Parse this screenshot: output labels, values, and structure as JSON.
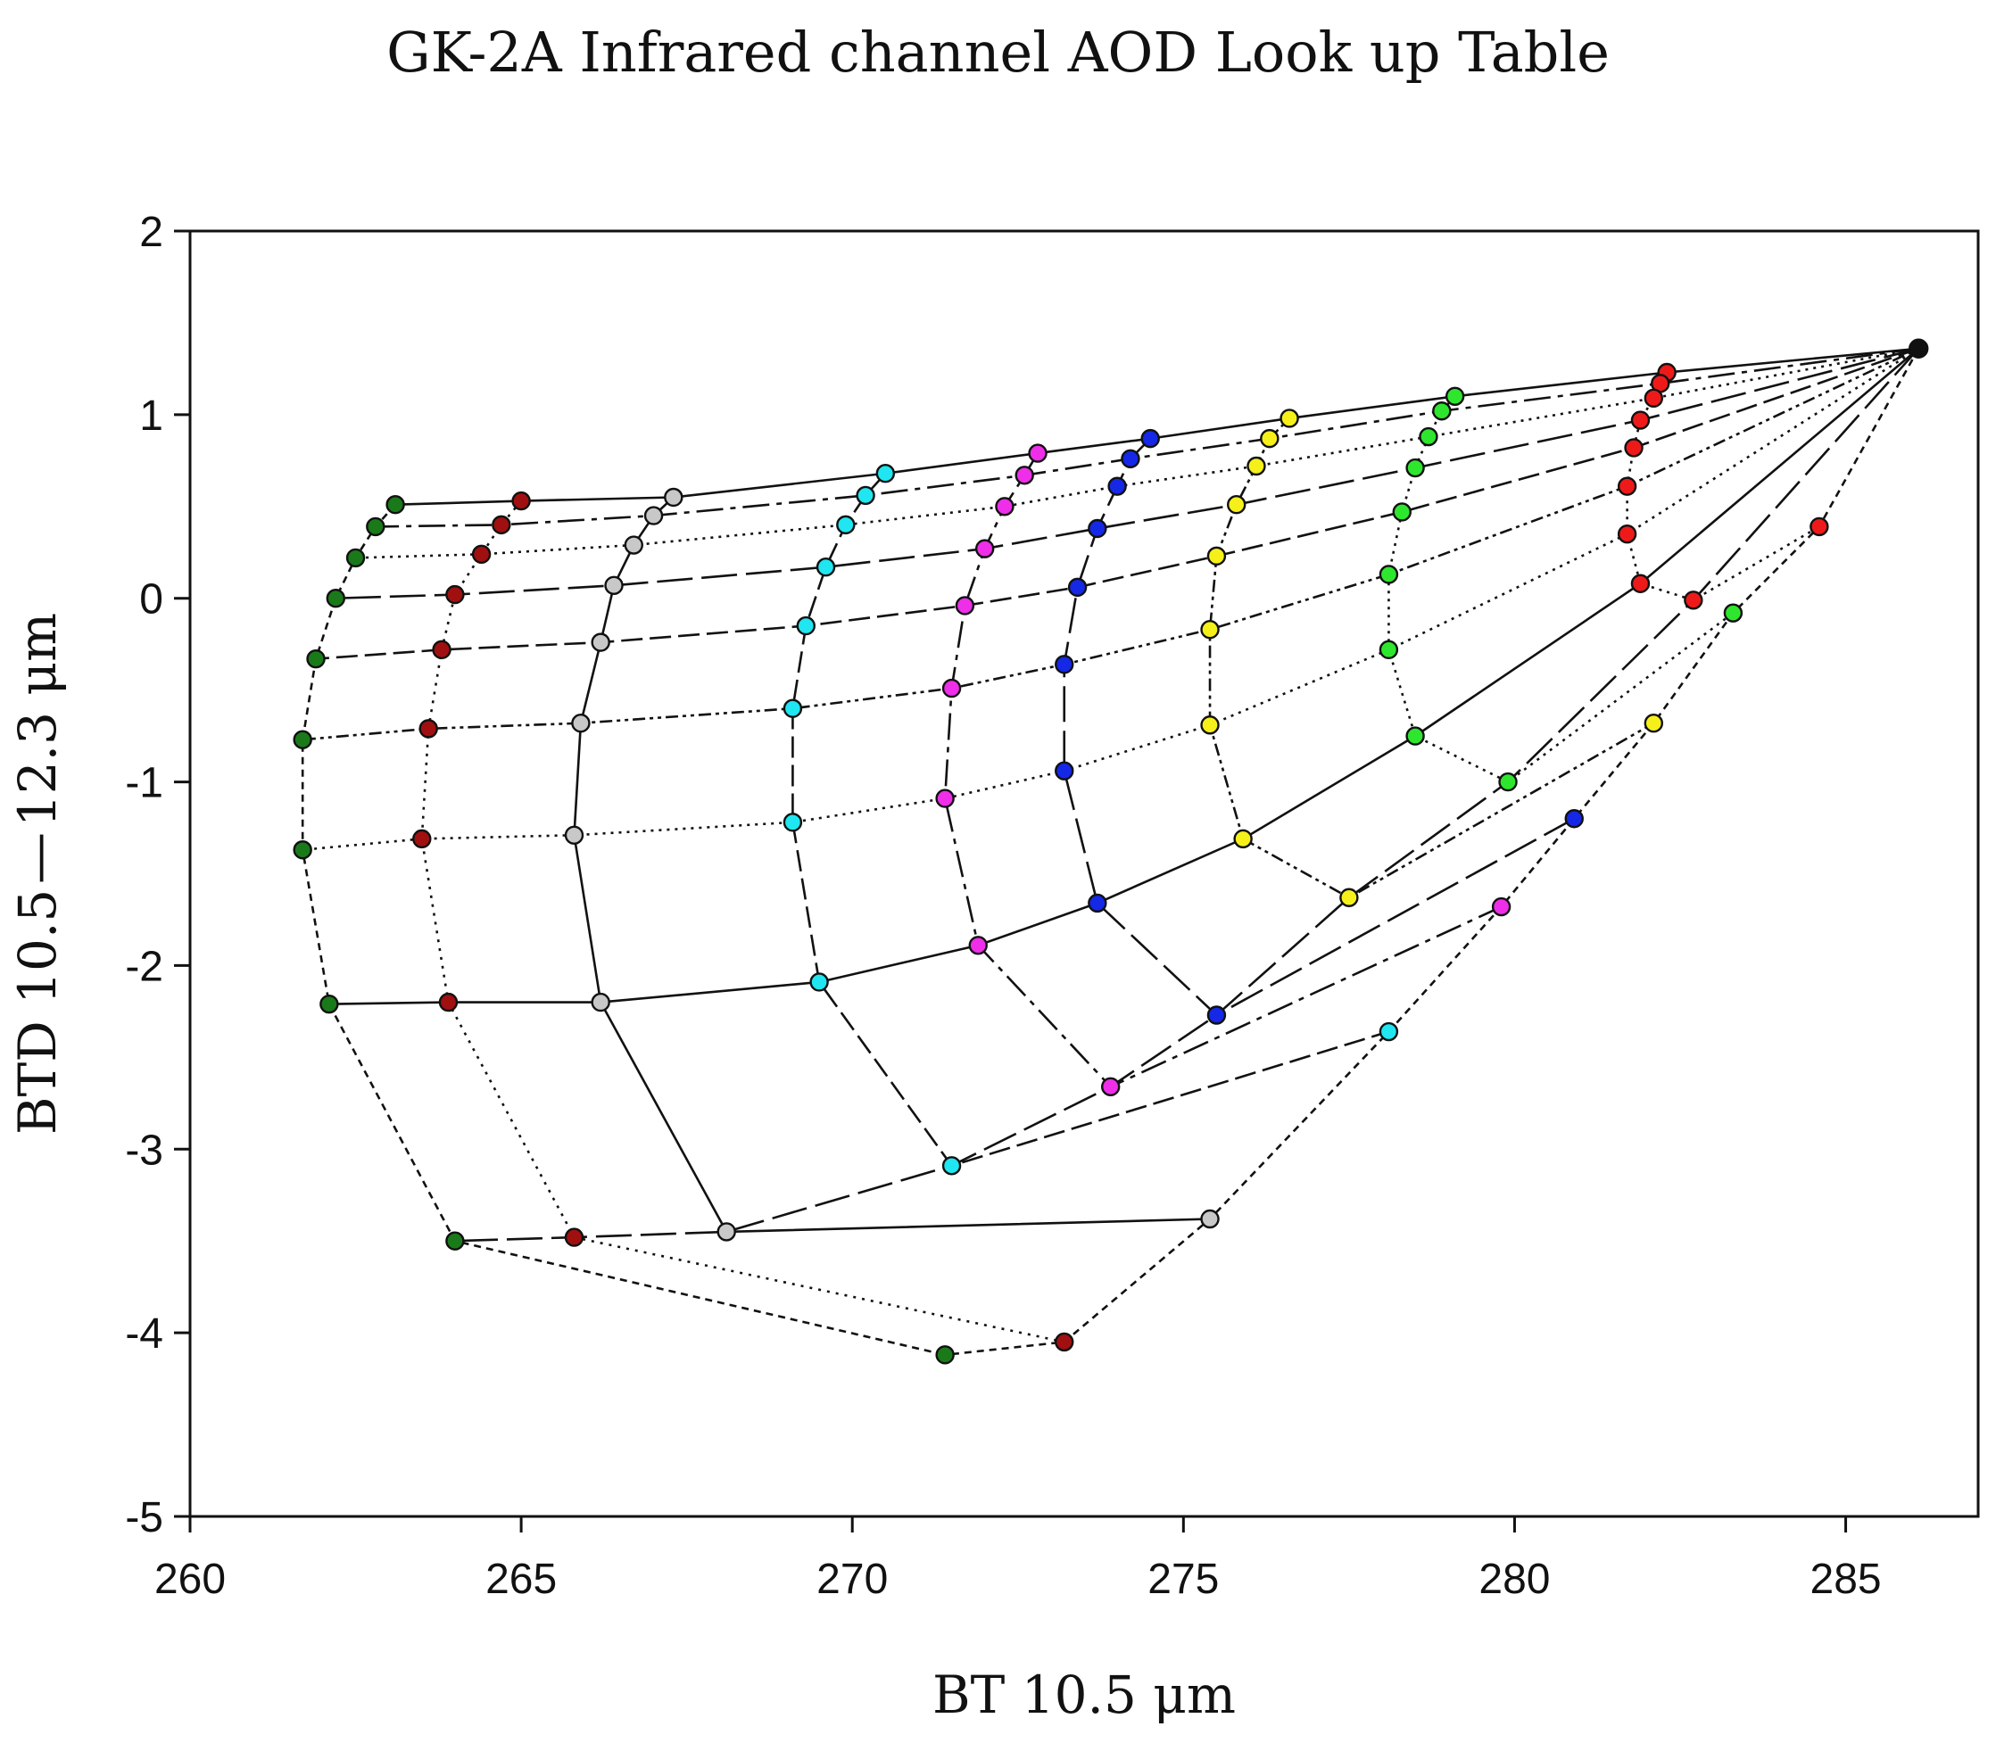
{
  "chart_data": {
    "type": "scatter",
    "title": "GK-2A Infrared channel AOD Look up Table",
    "xlabel": "BT 10.5 μm",
    "ylabel": "BTD 10.5 — 12.3 μm",
    "xlim": [
      260,
      287
    ],
    "ylim": [
      -5,
      2
    ],
    "xticks": [
      260,
      265,
      270,
      275,
      280,
      285
    ],
    "yticks": [
      2,
      1,
      0,
      -1,
      -2,
      -3,
      -4,
      -5
    ],
    "grid": false,
    "legend": "none",
    "colors": {
      "darkgreen": "#1a7a1a",
      "darkred": "#a01010",
      "gray": "#c8c8c8",
      "cyan": "#1fe6f0",
      "magenta": "#ee2ee8",
      "blue": "#1428e6",
      "yellow": "#f5f01a",
      "green": "#2ee62e",
      "red": "#ee1a1a",
      "black": "#111111"
    },
    "origin": {
      "x": 286.1,
      "y": 1.36
    },
    "series": [
      {
        "color": "darkgreen",
        "dash": "8,6",
        "points": [
          [
            263.1,
            0.51
          ],
          [
            262.8,
            0.39
          ],
          [
            262.5,
            0.22
          ],
          [
            262.2,
            0.0
          ],
          [
            261.9,
            -0.33
          ],
          [
            261.7,
            -0.77
          ],
          [
            261.7,
            -1.37
          ],
          [
            262.1,
            -2.21
          ],
          [
            264.0,
            -3.5
          ],
          [
            271.4,
            -4.12
          ]
        ]
      },
      {
        "color": "darkred",
        "dash": "3,7",
        "points": [
          [
            265.0,
            0.53
          ],
          [
            264.7,
            0.4
          ],
          [
            264.4,
            0.24
          ],
          [
            264.0,
            0.02
          ],
          [
            263.8,
            -0.28
          ],
          [
            263.6,
            -0.71
          ],
          [
            263.5,
            -1.31
          ],
          [
            263.9,
            -2.2
          ],
          [
            265.8,
            -3.48
          ],
          [
            273.2,
            -4.05
          ]
        ]
      },
      {
        "color": "gray",
        "dash": "",
        "points": [
          [
            267.3,
            0.55
          ],
          [
            267.0,
            0.45
          ],
          [
            266.7,
            0.29
          ],
          [
            266.4,
            0.07
          ],
          [
            266.2,
            -0.24
          ],
          [
            265.9,
            -0.68
          ],
          [
            265.8,
            -1.29
          ],
          [
            266.2,
            -2.2
          ],
          [
            268.1,
            -3.45
          ],
          [
            275.4,
            -3.38
          ]
        ]
      },
      {
        "color": "cyan",
        "dash": "24,8",
        "points": [
          [
            270.5,
            0.68
          ],
          [
            270.2,
            0.56
          ],
          [
            269.9,
            0.4
          ],
          [
            269.6,
            0.17
          ],
          [
            269.3,
            -0.15
          ],
          [
            269.1,
            -0.6
          ],
          [
            269.1,
            -1.22
          ],
          [
            269.5,
            -2.09
          ],
          [
            271.5,
            -3.09
          ],
          [
            278.1,
            -2.36
          ]
        ]
      },
      {
        "color": "magenta",
        "dash": "30,8,6,8",
        "points": [
          [
            272.8,
            0.79
          ],
          [
            272.6,
            0.67
          ],
          [
            272.3,
            0.5
          ],
          [
            272.0,
            0.27
          ],
          [
            271.7,
            -0.04
          ],
          [
            271.5,
            -0.49
          ],
          [
            271.4,
            -1.09
          ],
          [
            271.9,
            -1.89
          ],
          [
            273.9,
            -2.66
          ],
          [
            279.8,
            -1.68
          ]
        ]
      },
      {
        "color": "blue",
        "dash": "40,10",
        "points": [
          [
            274.5,
            0.87
          ],
          [
            274.2,
            0.76
          ],
          [
            274.0,
            0.61
          ],
          [
            273.7,
            0.38
          ],
          [
            273.4,
            0.06
          ],
          [
            273.2,
            -0.36
          ],
          [
            273.2,
            -0.94
          ],
          [
            273.7,
            -1.66
          ],
          [
            275.5,
            -2.27
          ],
          [
            280.9,
            -1.2
          ]
        ]
      },
      {
        "color": "yellow",
        "dash": "4,5,4,5,14,5",
        "points": [
          [
            276.6,
            0.98
          ],
          [
            276.3,
            0.87
          ],
          [
            276.1,
            0.72
          ],
          [
            275.8,
            0.51
          ],
          [
            275.5,
            0.23
          ],
          [
            275.4,
            -0.17
          ],
          [
            275.4,
            -0.69
          ],
          [
            275.9,
            -1.31
          ],
          [
            277.5,
            -1.63
          ],
          [
            282.1,
            -0.68
          ]
        ]
      },
      {
        "color": "green",
        "dash": "3,6",
        "points": [
          [
            279.1,
            1.1
          ],
          [
            278.9,
            1.02
          ],
          [
            278.7,
            0.88
          ],
          [
            278.5,
            0.71
          ],
          [
            278.3,
            0.47
          ],
          [
            278.1,
            0.13
          ],
          [
            278.1,
            -0.28
          ],
          [
            278.5,
            -0.75
          ],
          [
            279.9,
            -1.0
          ],
          [
            283.3,
            -0.08
          ]
        ]
      },
      {
        "color": "red",
        "dash": "3,6",
        "points": [
          [
            282.3,
            1.23
          ],
          [
            282.2,
            1.17
          ],
          [
            282.1,
            1.09
          ],
          [
            281.9,
            0.97
          ],
          [
            281.8,
            0.82
          ],
          [
            281.7,
            0.61
          ],
          [
            281.7,
            0.35
          ],
          [
            281.9,
            0.08
          ],
          [
            282.7,
            -0.01
          ],
          [
            284.6,
            0.39
          ]
        ]
      }
    ]
  }
}
